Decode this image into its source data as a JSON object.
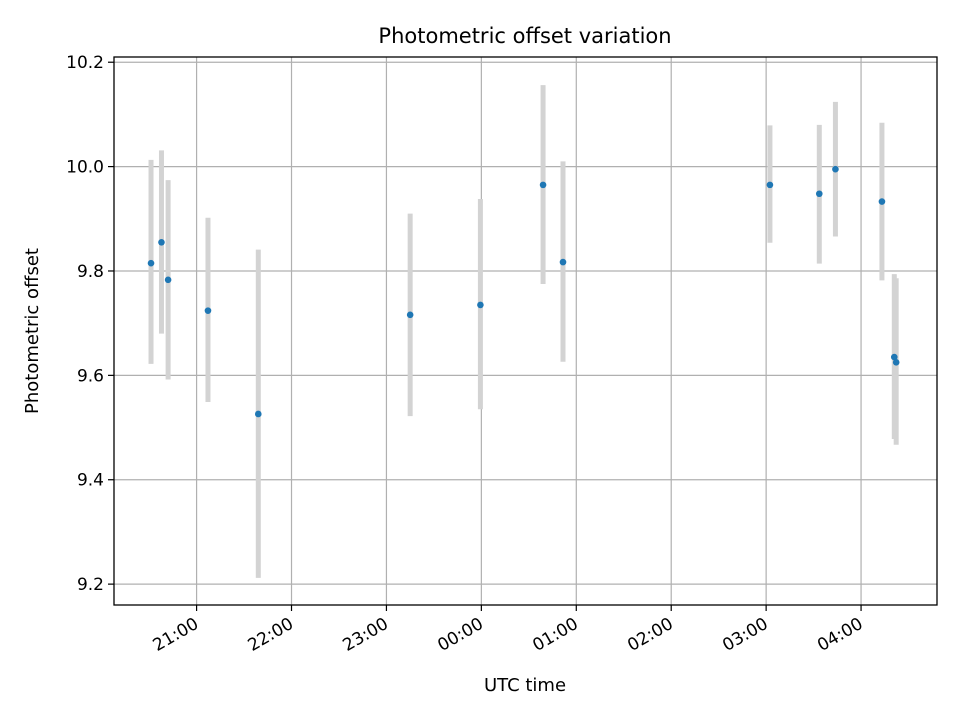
{
  "chart_data": {
    "type": "scatter",
    "title": "Photometric offset variation",
    "xlabel": "UTC time",
    "ylabel": "Photometric offset",
    "x_unit": "hours",
    "xlim": [
      20.13,
      28.8
    ],
    "ylim": [
      9.16,
      10.21
    ],
    "x_ticks": [
      {
        "value": 21,
        "label": "21:00"
      },
      {
        "value": 22,
        "label": "22:00"
      },
      {
        "value": 23,
        "label": "23:00"
      },
      {
        "value": 24,
        "label": "00:00"
      },
      {
        "value": 25,
        "label": "01:00"
      },
      {
        "value": 26,
        "label": "02:00"
      },
      {
        "value": 27,
        "label": "03:00"
      },
      {
        "value": 28,
        "label": "04:00"
      }
    ],
    "y_ticks": [
      {
        "value": 9.2,
        "label": "9.2"
      },
      {
        "value": 9.4,
        "label": "9.4"
      },
      {
        "value": 9.6,
        "label": "9.6"
      },
      {
        "value": 9.8,
        "label": "9.8"
      },
      {
        "value": 10.0,
        "label": "10.0"
      },
      {
        "value": 10.2,
        "label": "10.2"
      }
    ],
    "grid": true,
    "marker_color": "#1f77b4",
    "errorbar_color": "#d3d3d3",
    "points": [
      {
        "x": 20.52,
        "y": 9.815,
        "low": 9.622,
        "high": 10.013
      },
      {
        "x": 20.63,
        "y": 9.855,
        "low": 9.68,
        "high": 10.031
      },
      {
        "x": 20.7,
        "y": 9.783,
        "low": 9.592,
        "high": 9.974
      },
      {
        "x": 21.12,
        "y": 9.724,
        "low": 9.549,
        "high": 9.902
      },
      {
        "x": 21.65,
        "y": 9.526,
        "low": 9.212,
        "high": 9.841
      },
      {
        "x": 23.25,
        "y": 9.716,
        "low": 9.522,
        "high": 9.91
      },
      {
        "x": 23.99,
        "y": 9.735,
        "low": 9.535,
        "high": 9.938
      },
      {
        "x": 24.65,
        "y": 9.965,
        "low": 9.775,
        "high": 10.156
      },
      {
        "x": 24.86,
        "y": 9.817,
        "low": 9.626,
        "high": 10.01
      },
      {
        "x": 27.04,
        "y": 9.965,
        "low": 9.854,
        "high": 10.079
      },
      {
        "x": 27.56,
        "y": 9.948,
        "low": 9.814,
        "high": 10.08
      },
      {
        "x": 27.73,
        "y": 9.995,
        "low": 9.866,
        "high": 10.124
      },
      {
        "x": 28.22,
        "y": 9.933,
        "low": 9.782,
        "high": 10.084
      },
      {
        "x": 28.35,
        "y": 9.635,
        "low": 9.478,
        "high": 9.794
      },
      {
        "x": 28.37,
        "y": 9.625,
        "low": 9.467,
        "high": 9.786
      }
    ]
  }
}
